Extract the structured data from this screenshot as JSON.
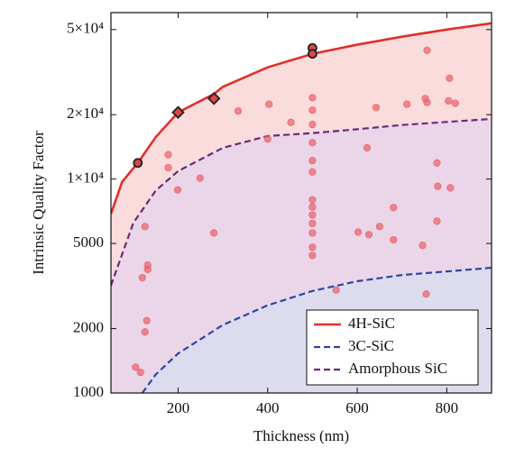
{
  "chart_data": {
    "type": "line",
    "x_label": "Thickness (nm)",
    "y_label": "Intrinsic Quality Factor",
    "xlim": [
      50,
      900
    ],
    "ylim": [
      1000,
      60000
    ],
    "log_y": true,
    "xticks": [
      200,
      400,
      600,
      800
    ],
    "yticks": [
      1000,
      2000,
      5000,
      {
        "value": 10000,
        "label": "1×10⁴"
      },
      {
        "value": 20000,
        "label": "2×10⁴"
      },
      {
        "value": 50000,
        "label": "5×10⁴"
      }
    ],
    "legend": "lower right",
    "series": [
      {
        "name": "4H-SiC",
        "color": "#e0302a",
        "dash": false,
        "fill": "#fbdcdc",
        "x": [
          50,
          75,
          110,
          150,
          200,
          280,
          300,
          400,
          500,
          600,
          700,
          800,
          900
        ],
        "values": [
          6870,
          9700,
          11900,
          15700,
          20500,
          25000,
          27000,
          33300,
          38500,
          42500,
          46300,
          50000,
          53500
        ]
      },
      {
        "name": "Amorphous SiC",
        "color": "#6a2a7a",
        "dash": true,
        "fill": "#ead6e8",
        "x": [
          50,
          100,
          150,
          200,
          300,
          400,
          500,
          600,
          700,
          800,
          900
        ],
        "values": [
          3180,
          6240,
          8830,
          10900,
          14000,
          15900,
          16400,
          17100,
          17900,
          18500,
          19100
        ]
      },
      {
        "name": "3C-SiC",
        "color": "#2a45a8",
        "dash": true,
        "fill": "#dddcef",
        "x": [
          120,
          150,
          200,
          300,
          400,
          500,
          600,
          700,
          800,
          900
        ],
        "values": [
          1000,
          1220,
          1530,
          2080,
          2570,
          3000,
          3330,
          3560,
          3700,
          3850
        ]
      }
    ],
    "scatter": [
      {
        "color": "#e8606a",
        "outline": false,
        "marker": "circle",
        "x": [
          105,
          116,
          126,
          130,
          120,
          132,
          132,
          126,
          178,
          178,
          199,
          249,
          280,
          334,
          403,
          400,
          452,
          500,
          500,
          500,
          500,
          500,
          500,
          500,
          500,
          500,
          500,
          500,
          500,
          500,
          553,
          602,
          626,
          622,
          650,
          681,
          681,
          642,
          711,
          746,
          754,
          752,
          756,
          756,
          778,
          780,
          778,
          804,
          806,
          808,
          819
        ],
        "y": [
          1320,
          1250,
          1930,
          2180,
          3460,
          3780,
          3960,
          6000,
          13000,
          11300,
          8900,
          10100,
          5600,
          20800,
          22400,
          15400,
          18400,
          24000,
          21000,
          18000,
          14800,
          12200,
          10800,
          8000,
          7400,
          6800,
          6200,
          5600,
          4800,
          4400,
          3030,
          5650,
          5500,
          14000,
          6000,
          5200,
          7350,
          21600,
          22400,
          4900,
          2900,
          23800,
          22800,
          40000,
          6360,
          9250,
          11900,
          23200,
          29600,
          9100,
          22600
        ]
      },
      {
        "color": "#d94848",
        "outline": true,
        "marker": "circle",
        "x": [
          110,
          500,
          500
        ],
        "y": [
          11900,
          41000,
          38500
        ]
      },
      {
        "color": "#d94848",
        "outline": true,
        "marker": "diamond",
        "x": [
          200,
          280
        ],
        "y": [
          20500,
          23800
        ]
      }
    ]
  }
}
